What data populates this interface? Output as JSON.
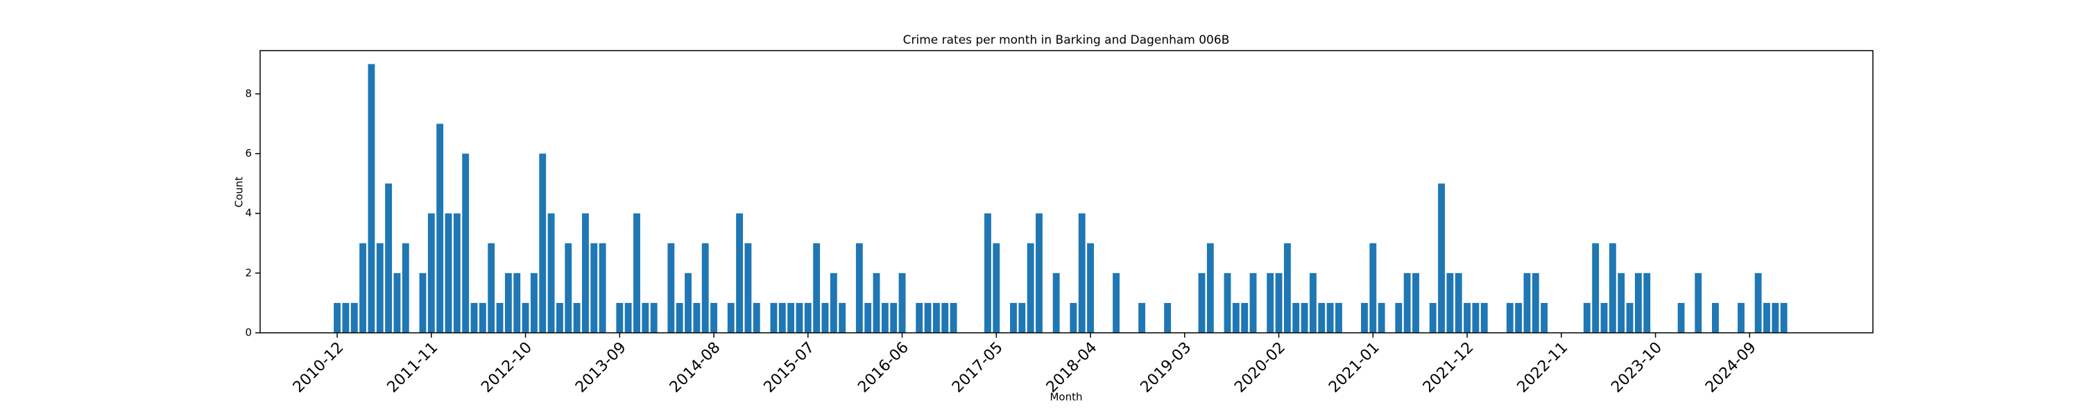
{
  "chart_data": {
    "type": "bar",
    "title": "Crime rates per month in Barking and Dagenham 006B",
    "x_label": "Month",
    "y_label": "Count",
    "color": "#1f77b4",
    "categories": [
      "2010-12",
      null,
      null,
      null,
      null,
      null,
      null,
      null,
      null,
      null,
      null,
      "2011-11",
      null,
      null,
      null,
      null,
      null,
      null,
      null,
      null,
      null,
      null,
      "2012-10",
      null,
      null,
      null,
      null,
      null,
      null,
      null,
      null,
      null,
      null,
      "2013-09",
      null,
      null,
      null,
      null,
      null,
      null,
      null,
      null,
      null,
      null,
      "2014-08",
      null,
      null,
      null,
      null,
      null,
      null,
      null,
      null,
      null,
      null,
      "2015-07",
      null,
      null,
      null,
      null,
      null,
      null,
      null,
      null,
      null,
      null,
      "2016-06",
      null,
      null,
      null,
      null,
      null,
      null,
      null,
      null,
      null,
      null,
      "2017-05",
      null,
      null,
      null,
      null,
      null,
      null,
      null,
      null,
      null,
      null,
      "2018-04",
      null,
      null,
      null,
      null,
      null,
      null,
      null,
      null,
      null,
      null,
      "2019-03",
      null,
      null,
      null,
      null,
      null,
      null,
      null,
      null,
      null,
      null,
      "2020-02",
      null,
      null,
      null,
      null,
      null,
      null,
      null,
      null,
      null,
      null,
      "2021-01",
      null,
      null,
      null,
      null,
      null,
      null,
      null,
      null,
      null,
      null,
      "2021-12",
      null,
      null,
      null,
      null,
      null,
      null,
      null,
      null,
      null,
      null,
      "2022-11",
      null,
      null,
      null,
      null,
      null,
      null,
      null,
      null,
      null,
      null,
      "2023-10",
      null,
      null,
      null,
      null,
      null,
      null,
      null,
      null,
      null,
      null,
      "2024-09",
      null,
      null,
      null,
      null
    ],
    "values": [
      1,
      1,
      1,
      3,
      9,
      3,
      5,
      2,
      3,
      0,
      2,
      4,
      7,
      4,
      4,
      6,
      1,
      1,
      3,
      1,
      2,
      2,
      1,
      2,
      6,
      4,
      1,
      3,
      1,
      4,
      3,
      3,
      0,
      1,
      1,
      4,
      1,
      1,
      0,
      3,
      1,
      2,
      1,
      3,
      1,
      0,
      1,
      4,
      3,
      1,
      0,
      1,
      1,
      1,
      1,
      1,
      3,
      1,
      2,
      1,
      0,
      3,
      1,
      2,
      1,
      1,
      2,
      0,
      1,
      1,
      1,
      1,
      1,
      0,
      0,
      0,
      4,
      3,
      0,
      1,
      1,
      3,
      4,
      0,
      2,
      0,
      1,
      4,
      3,
      0,
      0,
      2,
      0,
      0,
      1,
      0,
      0,
      1,
      0,
      0,
      0,
      2,
      3,
      0,
      2,
      1,
      1,
      2,
      0,
      2,
      2,
      3,
      1,
      1,
      2,
      1,
      1,
      1,
      0,
      0,
      1,
      3,
      1,
      0,
      1,
      2,
      2,
      0,
      1,
      5,
      2,
      2,
      1,
      1,
      1,
      0,
      0,
      1,
      1,
      2,
      2,
      1,
      0,
      0,
      0,
      0,
      1,
      3,
      1,
      3,
      2,
      1,
      2,
      2,
      0,
      0,
      0,
      1,
      0,
      2,
      0,
      1,
      0,
      0,
      1,
      0,
      2,
      1,
      1,
      1
    ],
    "ylim": [
      0,
      9.45
    ],
    "yticks": [
      0,
      2,
      4,
      6,
      8
    ]
  }
}
